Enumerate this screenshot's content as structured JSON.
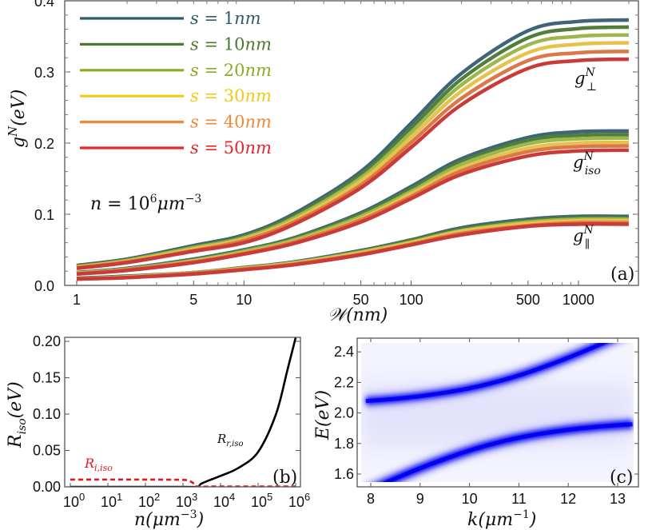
{
  "chart_data": [
    {
      "panel": "(a)",
      "type": "line",
      "xscale": "log",
      "xlim": [
        0.9,
        2400
      ],
      "ylim": [
        0,
        0.4
      ],
      "grid": false,
      "legend_placement": "top-left",
      "xlabel": {
        "base": "𝒲",
        "rest": "(nm)"
      },
      "ylabel": {
        "base": "g",
        "sup": "N",
        "rest": "(eV)"
      },
      "xticks": [
        "1",
        "5",
        "10",
        "50",
        "100",
        "500",
        "1000"
      ],
      "xtick_values": [
        1,
        5,
        10,
        50,
        100,
        500,
        1000
      ],
      "yticks": [
        "0.0",
        "0.1",
        "0.2",
        "0.3",
        "0.4"
      ],
      "ytick_values": [
        0,
        0.1,
        0.2,
        0.3,
        0.4
      ],
      "annotation": {
        "lhs": "n",
        "eq": " = 10",
        "sup": "6",
        "unit": "μm",
        "unit_sup": "−3"
      },
      "curve_labels": [
        {
          "base": "g",
          "sup": "N",
          "sub": "⊥"
        },
        {
          "base": "g",
          "sup": "N",
          "sub": "iso"
        },
        {
          "base": "g",
          "sup": "N",
          "sub": "∥"
        }
      ],
      "x": [
        1,
        2,
        5,
        10,
        20,
        50,
        100,
        200,
        500,
        1000,
        2000
      ],
      "series": [
        {
          "name": "s = 1nm",
          "legend": {
            "lhs": "s",
            "eq": " = 1",
            "unit": "nm"
          },
          "color": "#2f5a6c",
          "curve_color": "#3f6578",
          "perp": [
            0.028,
            0.037,
            0.056,
            0.071,
            0.101,
            0.16,
            0.228,
            0.298,
            0.358,
            0.371,
            0.373
          ],
          "iso": [
            0.018,
            0.024,
            0.037,
            0.05,
            0.067,
            0.102,
            0.139,
            0.178,
            0.208,
            0.216,
            0.217
          ],
          "par": [
            0.01,
            0.013,
            0.018,
            0.025,
            0.033,
            0.049,
            0.064,
            0.081,
            0.093,
            0.097,
            0.097
          ]
        },
        {
          "name": "s = 10nm",
          "legend": {
            "lhs": "s",
            "eq": " = 10",
            "unit": "nm"
          },
          "color": "#4a7a2e",
          "curve_color": "#4f7f3b",
          "perp": [
            0.027,
            0.036,
            0.054,
            0.069,
            0.098,
            0.156,
            0.221,
            0.29,
            0.348,
            0.361,
            0.363
          ],
          "iso": [
            0.018,
            0.023,
            0.036,
            0.049,
            0.066,
            0.1,
            0.136,
            0.174,
            0.204,
            0.211,
            0.212
          ],
          "par": [
            0.01,
            0.012,
            0.018,
            0.025,
            0.032,
            0.048,
            0.063,
            0.079,
            0.091,
            0.095,
            0.095
          ]
        },
        {
          "name": "s = 20nm",
          "legend": {
            "lhs": "s",
            "eq": " = 20",
            "unit": "nm"
          },
          "color": "#8aac22",
          "curve_color": "#9db74c",
          "perp": [
            0.026,
            0.035,
            0.053,
            0.067,
            0.095,
            0.151,
            0.215,
            0.282,
            0.338,
            0.35,
            0.352
          ],
          "iso": [
            0.017,
            0.023,
            0.035,
            0.048,
            0.064,
            0.097,
            0.132,
            0.17,
            0.199,
            0.206,
            0.207
          ],
          "par": [
            0.009,
            0.012,
            0.018,
            0.024,
            0.032,
            0.047,
            0.061,
            0.077,
            0.089,
            0.093,
            0.093
          ]
        },
        {
          "name": "s = 30nm",
          "legend": {
            "lhs": "s",
            "eq": " = 30",
            "unit": "nm"
          },
          "color": "#f2c81a",
          "curve_color": "#e6c24c",
          "perp": [
            0.026,
            0.034,
            0.051,
            0.065,
            0.092,
            0.147,
            0.208,
            0.273,
            0.327,
            0.339,
            0.341
          ],
          "iso": [
            0.017,
            0.022,
            0.034,
            0.046,
            0.062,
            0.094,
            0.129,
            0.165,
            0.193,
            0.2,
            0.201
          ],
          "par": [
            0.009,
            0.012,
            0.017,
            0.024,
            0.031,
            0.046,
            0.06,
            0.076,
            0.087,
            0.091,
            0.091
          ]
        },
        {
          "name": "s = 40nm",
          "legend": {
            "lhs": "s",
            "eq": " = 40",
            "unit": "nm"
          },
          "color": "#f2873a",
          "curve_color": "#dc7848",
          "perp": [
            0.025,
            0.033,
            0.049,
            0.063,
            0.089,
            0.141,
            0.201,
            0.263,
            0.316,
            0.327,
            0.329
          ],
          "iso": [
            0.016,
            0.022,
            0.033,
            0.045,
            0.061,
            0.092,
            0.125,
            0.161,
            0.188,
            0.195,
            0.196
          ],
          "par": [
            0.009,
            0.011,
            0.017,
            0.023,
            0.03,
            0.044,
            0.058,
            0.073,
            0.084,
            0.088,
            0.088
          ]
        },
        {
          "name": "s = 50nm",
          "legend": {
            "lhs": "s",
            "eq": " = 50",
            "unit": "nm"
          },
          "color": "#e8262a",
          "curve_color": "#c93a38",
          "perp": [
            0.024,
            0.032,
            0.048,
            0.06,
            0.086,
            0.137,
            0.194,
            0.254,
            0.305,
            0.316,
            0.318
          ],
          "iso": [
            0.016,
            0.021,
            0.032,
            0.044,
            0.059,
            0.089,
            0.122,
            0.156,
            0.182,
            0.189,
            0.19
          ],
          "par": [
            0.009,
            0.011,
            0.016,
            0.022,
            0.029,
            0.043,
            0.057,
            0.071,
            0.083,
            0.086,
            0.086
          ]
        }
      ]
    },
    {
      "panel": "(b)",
      "type": "line",
      "xscale": "log",
      "xlim": [
        0.7,
        1500000.0
      ],
      "ylim": [
        0,
        0.2
      ],
      "grid": false,
      "xlabel": {
        "base": "n",
        "rest": "(μm",
        "sup": "−3",
        "close": ")"
      },
      "ylabel": {
        "base": "R",
        "sub": "iso",
        "rest": "(eV)"
      },
      "xticks": [
        {
          "base": "10",
          "sup": "0"
        },
        {
          "base": "10",
          "sup": "1"
        },
        {
          "base": "10",
          "sup": "2"
        },
        {
          "base": "10",
          "sup": "3"
        },
        {
          "base": "10",
          "sup": "4"
        },
        {
          "base": "10",
          "sup": "5"
        },
        {
          "base": "10",
          "sup": "6"
        }
      ],
      "xtick_values": [
        1,
        10,
        100,
        1000,
        10000,
        100000,
        1000000
      ],
      "yticks": [
        "0.00",
        "0.05",
        "0.10",
        "0.15",
        "0.20"
      ],
      "ytick_values": [
        0,
        0.05,
        0.1,
        0.15,
        0.2
      ],
      "series": [
        {
          "label": {
            "base": "R",
            "sub": "r,iso"
          },
          "color": "#000000",
          "style": "solid",
          "x": [
            1,
            1000,
            2400,
            3000,
            5000,
            10000,
            30000,
            100000,
            300000,
            600000,
            1000000
          ],
          "y": [
            0,
            0,
            0,
            0.004,
            0.009,
            0.015,
            0.026,
            0.048,
            0.1,
            0.16,
            0.205
          ]
        },
        {
          "label": {
            "base": "R",
            "sub": "i,iso"
          },
          "color": "#e8141c",
          "style": "dashed",
          "x": [
            1,
            100,
            1000,
            1500,
            2000,
            2400,
            10000,
            1000000
          ],
          "y": [
            0.01,
            0.01,
            0.0095,
            0.008,
            0.004,
            0.0005,
            0.0005,
            0.0005
          ]
        }
      ]
    },
    {
      "panel": "(c)",
      "type": "heatmap",
      "xlim": [
        7.85,
        13.3
      ],
      "ylim": [
        1.55,
        2.46
      ],
      "grid": false,
      "xlabel": {
        "base": "k",
        "rest": "(μm",
        "sup": "−1",
        "close": ")"
      },
      "ylabel": {
        "base": "E",
        "rest": "(eV)"
      },
      "xticks": [
        "8",
        "9",
        "10",
        "11",
        "12",
        "13"
      ],
      "xtick_values": [
        8,
        9,
        10,
        11,
        12,
        13
      ],
      "yticks": [
        "1.6",
        "1.8",
        "2.0",
        "2.2",
        "2.4"
      ],
      "ytick_values": [
        1.6,
        1.8,
        2.0,
        2.2,
        2.4
      ],
      "colormap": {
        "low": "#ffffff",
        "high": "#0000f0"
      },
      "k": [
        7.9,
        8.5,
        9,
        9.5,
        10,
        10.5,
        11,
        11.5,
        12,
        12.5,
        13,
        13.3
      ],
      "branches": [
        {
          "E": [
            2.078,
            2.093,
            2.11,
            2.133,
            2.162,
            2.2,
            2.246,
            2.301,
            2.362,
            2.429,
            2.5,
            2.544
          ]
        },
        {
          "E": [
            1.485,
            1.571,
            1.638,
            1.699,
            1.754,
            1.8,
            1.838,
            1.867,
            1.89,
            1.907,
            1.92,
            1.926
          ]
        }
      ]
    }
  ]
}
